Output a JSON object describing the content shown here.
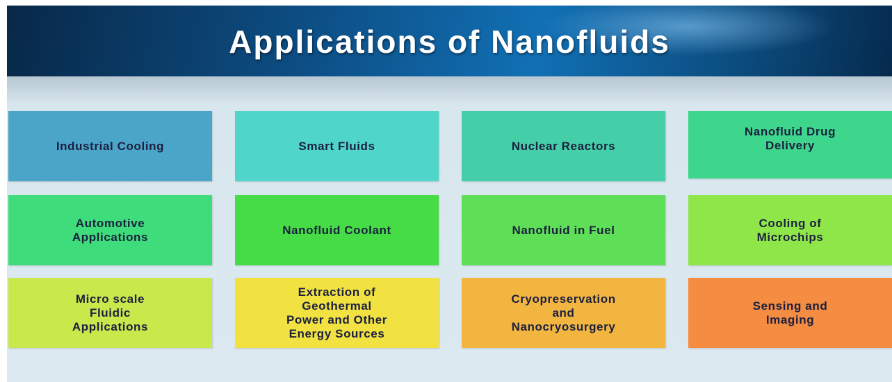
{
  "header": {
    "title": "Applications of Nanofluids"
  },
  "grid": {
    "rows": [
      [
        {
          "lines": [
            "Industrial Cooling"
          ]
        },
        {
          "lines": [
            "Smart Fluids"
          ]
        },
        {
          "lines": [
            "Nuclear Reactors"
          ]
        },
        {
          "lines": [
            "Nanofluid Drug",
            "Delivery"
          ]
        }
      ],
      [
        {
          "lines": [
            "Automotive",
            "Applications"
          ]
        },
        {
          "lines": [
            "Nanofluid Coolant"
          ]
        },
        {
          "lines": [
            "Nanofluid in Fuel"
          ]
        },
        {
          "lines": [
            "Cooling of",
            "Microchips"
          ]
        }
      ],
      [
        {
          "lines": [
            "Micro scale",
            "Fluidic",
            "Applications"
          ]
        },
        {
          "lines": [
            "Extraction of",
            "Geothermal",
            "Power and Other",
            "Energy Sources"
          ]
        },
        {
          "lines": [
            "Cryopreservation",
            "and",
            "Nanocryosurgery"
          ]
        },
        {
          "lines": [
            "Sensing and",
            "Imaging"
          ]
        }
      ]
    ]
  }
}
